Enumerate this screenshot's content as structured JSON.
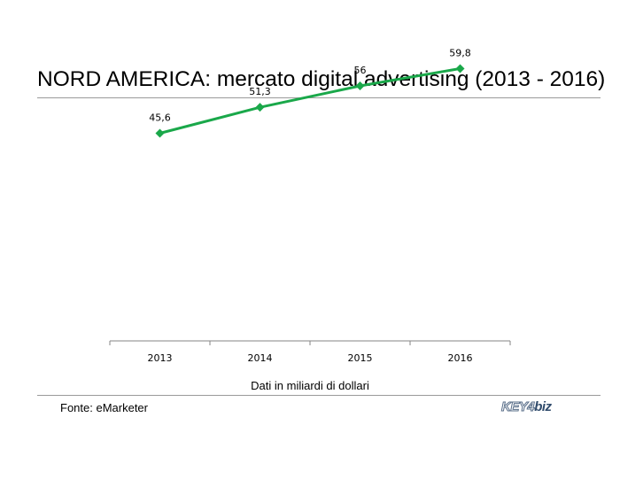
{
  "title": "NORD AMERICA: mercato digital advertising (2013 - 2016)",
  "source": "Fonte: eMarketer",
  "logo": {
    "text": "KEY4biz",
    "part1": "KEY4",
    "part2": "biz"
  },
  "colors": {
    "line": "#1aa84a",
    "axis": "#868686",
    "rule": "#9a9a9a"
  },
  "chart_data": {
    "type": "line",
    "categories": [
      "2013",
      "2014",
      "2015",
      "2016"
    ],
    "series": [
      {
        "values": [
          45.6,
          51.3,
          56,
          59.8
        ],
        "labels": [
          "45,6",
          "51,3",
          "56",
          "59,8"
        ]
      }
    ],
    "xlabel": "Dati in miliardi di dollari",
    "ylabel": "",
    "ylim": [
      0,
      70
    ],
    "grid": false,
    "legend": "none",
    "marker": "diamond"
  }
}
